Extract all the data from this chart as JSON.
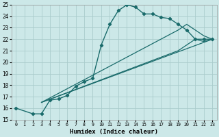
{
  "xlabel": "Humidex (Indice chaleur)",
  "xlim": [
    -0.5,
    23.5
  ],
  "ylim": [
    15,
    25
  ],
  "bg_color": "#cce8e8",
  "grid_color": "#aacccc",
  "line_color": "#1a6b6b",
  "main_line": {
    "x": [
      0,
      2,
      3,
      4,
      5,
      6,
      7,
      8,
      9,
      10,
      11,
      12,
      13,
      14,
      15,
      16,
      17,
      18,
      19,
      20,
      21,
      22,
      23
    ],
    "y": [
      16.0,
      15.5,
      15.5,
      16.7,
      16.8,
      17.1,
      17.9,
      18.3,
      18.6,
      21.5,
      23.3,
      24.5,
      25.0,
      24.8,
      24.2,
      24.2,
      23.9,
      23.8,
      23.3,
      22.8,
      22.0,
      22.0,
      22.0
    ]
  },
  "straight_lines": [
    {
      "x": [
        3,
        23
      ],
      "y": [
        16.5,
        22.0
      ]
    },
    {
      "x": [
        3,
        19,
        20,
        21,
        22,
        23
      ],
      "y": [
        16.5,
        22.8,
        23.3,
        22.8,
        22.3,
        22.0
      ]
    },
    {
      "x": [
        3,
        19,
        20,
        21,
        22,
        23
      ],
      "y": [
        16.5,
        21.0,
        21.5,
        22.0,
        21.8,
        22.0
      ]
    }
  ]
}
